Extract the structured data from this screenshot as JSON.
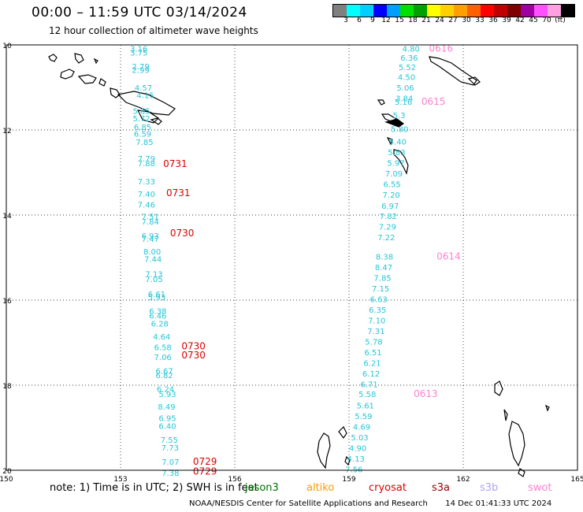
{
  "header": {
    "title": "00:00 – 11:59 UTC 03/14/2024",
    "subtitle": "12 hour collection of altimeter wave heights"
  },
  "colorbar": {
    "colors": [
      "#808080",
      "#00ffff",
      "#00cfff",
      "#0000ff",
      "#00a0ff",
      "#00e000",
      "#00a000",
      "#ffff00",
      "#ffd000",
      "#ffa000",
      "#ff6000",
      "#ff0000",
      "#c00000",
      "#800000",
      "#a000a0",
      "#ff50ff",
      "#ffa0e0",
      "#000000"
    ],
    "labels": [
      "3",
      "6",
      "9",
      "12",
      "15",
      "18",
      "21",
      "24",
      "27",
      "30",
      "33",
      "36",
      "39",
      "42",
      "45",
      "70",
      "(ft)"
    ]
  },
  "map": {
    "x_ticks": [
      "150",
      "153",
      "156",
      "159",
      "162",
      "165"
    ],
    "y_ticks": [
      "10",
      "12",
      "14",
      "16",
      "18",
      "20"
    ],
    "lon_range": [
      150,
      165
    ],
    "lat_range": [
      10,
      20
    ]
  },
  "tracks": {
    "left": {
      "color": "#26c6d6",
      "points": [
        {
          "t": "3.16",
          "lon": 153.25,
          "lat": 10.08,
          "c": "#26c6d6"
        },
        {
          "t": "3.75",
          "lon": 153.25,
          "lat": 10.18,
          "c": "#26c6d6"
        },
        {
          "t": "2.79",
          "lon": 153.3,
          "lat": 10.5,
          "c": "#808080"
        },
        {
          "t": "2.99",
          "lon": 153.3,
          "lat": 10.58,
          "c": "#808080"
        },
        {
          "t": "4.57",
          "lon": 153.37,
          "lat": 11.0,
          "c": "#26c6d6"
        },
        {
          "t": "4.15",
          "lon": 153.42,
          "lat": 11.18,
          "c": "#26c6d6"
        },
        {
          "t": "5.65",
          "lon": 153.32,
          "lat": 11.55,
          "c": "#26c6d6"
        },
        {
          "t": "5.72",
          "lon": 153.32,
          "lat": 11.72,
          "c": "#26c6d6"
        },
        {
          "t": "6.85",
          "lon": 153.35,
          "lat": 11.93,
          "c": "#26c6d6"
        },
        {
          "t": "6.59",
          "lon": 153.35,
          "lat": 12.08,
          "c": "#26c6d6"
        },
        {
          "t": "7.85",
          "lon": 153.4,
          "lat": 12.28,
          "c": "#26c6d6"
        },
        {
          "t": "7.79",
          "lon": 153.45,
          "lat": 12.67,
          "c": "#26c6d6"
        },
        {
          "t": "7.88",
          "lon": 153.45,
          "lat": 12.78,
          "c": "#26c6d6"
        },
        {
          "t": "7.33",
          "lon": 153.45,
          "lat": 13.2,
          "c": "#26c6d6"
        },
        {
          "t": "7.40",
          "lon": 153.45,
          "lat": 13.5,
          "c": "#26c6d6"
        },
        {
          "t": "7.46",
          "lon": 153.45,
          "lat": 13.75,
          "c": "#26c6d6"
        },
        {
          "t": "7.51",
          "lon": 153.55,
          "lat": 14.03,
          "c": "#26c6d6"
        },
        {
          "t": "7.84",
          "lon": 153.55,
          "lat": 14.15,
          "c": "#26c6d6"
        },
        {
          "t": "6.93",
          "lon": 153.55,
          "lat": 14.48,
          "c": "#26c6d6"
        },
        {
          "t": "7.47",
          "lon": 153.55,
          "lat": 14.56,
          "c": "#26c6d6"
        },
        {
          "t": "8.00",
          "lon": 153.6,
          "lat": 14.85,
          "c": "#26c6d6"
        },
        {
          "t": "7.44",
          "lon": 153.62,
          "lat": 15.03,
          "c": "#26c6d6"
        },
        {
          "t": "7.13",
          "lon": 153.65,
          "lat": 15.38,
          "c": "#26c6d6"
        },
        {
          "t": "7.05",
          "lon": 153.65,
          "lat": 15.5,
          "c": "#26c6d6"
        },
        {
          "t": "6.61",
          "lon": 153.72,
          "lat": 15.85,
          "c": "#26c6d6"
        },
        {
          "t": "5.93",
          "lon": 153.72,
          "lat": 15.93,
          "c": "#26c6d6"
        },
        {
          "t": "6.38",
          "lon": 153.75,
          "lat": 16.25,
          "c": "#26c6d6"
        },
        {
          "t": "6.46",
          "lon": 153.75,
          "lat": 16.36,
          "c": "#26c6d6"
        },
        {
          "t": "6.28",
          "lon": 153.8,
          "lat": 16.55,
          "c": "#26c6d6"
        },
        {
          "t": "4.64",
          "lon": 153.85,
          "lat": 16.85,
          "c": "#26c6d6"
        },
        {
          "t": "6.58",
          "lon": 153.88,
          "lat": 17.1,
          "c": "#26c6d6"
        },
        {
          "t": "7.06",
          "lon": 153.88,
          "lat": 17.33,
          "c": "#26c6d6"
        },
        {
          "t": "6.67",
          "lon": 153.92,
          "lat": 17.66,
          "c": "#26c6d6"
        },
        {
          "t": "6.82",
          "lon": 153.92,
          "lat": 17.76,
          "c": "#26c6d6"
        },
        {
          "t": "6.24",
          "lon": 153.95,
          "lat": 18.08,
          "c": "#26c6d6"
        },
        {
          "t": "5.93",
          "lon": 154.0,
          "lat": 18.2,
          "c": "#26c6d6"
        },
        {
          "t": "8.49",
          "lon": 153.98,
          "lat": 18.5,
          "c": "#26c6d6"
        },
        {
          "t": "6.95",
          "lon": 154.0,
          "lat": 18.77,
          "c": "#26c6d6"
        },
        {
          "t": "6.40",
          "lon": 154.0,
          "lat": 18.95,
          "c": "#26c6d6"
        },
        {
          "t": "7.55",
          "lon": 154.05,
          "lat": 19.28,
          "c": "#26c6d6"
        },
        {
          "t": "7.73",
          "lon": 154.07,
          "lat": 19.46,
          "c": "#26c6d6"
        },
        {
          "t": "7.07",
          "lon": 154.08,
          "lat": 19.8,
          "c": "#26c6d6"
        },
        {
          "t": "7.38",
          "lon": 154.08,
          "lat": 20.06,
          "c": "#26c6d6"
        }
      ],
      "times": [
        {
          "t": "0731",
          "lon": 154.12,
          "lat": 12.8,
          "c": "#dd0000"
        },
        {
          "t": "0731",
          "lon": 154.2,
          "lat": 13.48,
          "c": "#dd0000"
        },
        {
          "t": "0730",
          "lon": 154.3,
          "lat": 14.43,
          "c": "#dd0000"
        },
        {
          "t": "0730",
          "lon": 154.6,
          "lat": 17.08,
          "c": "#dd0000"
        },
        {
          "t": "0730",
          "lon": 154.6,
          "lat": 17.3,
          "c": "#dd0000"
        },
        {
          "t": "0729",
          "lon": 154.9,
          "lat": 19.8,
          "c": "#dd0000"
        },
        {
          "t": "0729",
          "lon": 154.9,
          "lat": 20.03,
          "c": "#dd0000"
        }
      ]
    },
    "right": {
      "points": [
        {
          "t": "4.80",
          "lon": 160.4,
          "lat": 10.08,
          "c": "#26c6d6"
        },
        {
          "t": "6.36",
          "lon": 160.35,
          "lat": 10.3,
          "c": "#26c6d6"
        },
        {
          "t": "5.52",
          "lon": 160.3,
          "lat": 10.52,
          "c": "#26c6d6"
        },
        {
          "t": "4.50",
          "lon": 160.28,
          "lat": 10.75,
          "c": "#26c6d6"
        },
        {
          "t": "5.06",
          "lon": 160.25,
          "lat": 11.0,
          "c": "#26c6d6"
        },
        {
          "t": "3.84",
          "lon": 160.22,
          "lat": 11.25,
          "c": "#26c6d6"
        },
        {
          "t": "5.16",
          "lon": 160.2,
          "lat": 11.33,
          "c": "#26c6d6"
        },
        {
          "t": "5.3",
          "lon": 160.15,
          "lat": 11.65,
          "c": "#26c6d6"
        },
        {
          "t": "5.80",
          "lon": 160.1,
          "lat": 11.97,
          "c": "#26c6d6"
        },
        {
          "t": "5.40",
          "lon": 160.05,
          "lat": 12.27,
          "c": "#26c6d6"
        },
        {
          "t": "5.83",
          "lon": 160.02,
          "lat": 12.52,
          "c": "#26c6d6"
        },
        {
          "t": "5.97",
          "lon": 160.0,
          "lat": 12.77,
          "c": "#26c6d6"
        },
        {
          "t": "7.09",
          "lon": 159.95,
          "lat": 13.02,
          "c": "#26c6d6"
        },
        {
          "t": "6.55",
          "lon": 159.9,
          "lat": 13.27,
          "c": "#26c6d6"
        },
        {
          "t": "7.20",
          "lon": 159.88,
          "lat": 13.52,
          "c": "#26c6d6"
        },
        {
          "t": "6.97",
          "lon": 159.85,
          "lat": 13.78,
          "c": "#26c6d6"
        },
        {
          "t": "7.82",
          "lon": 159.8,
          "lat": 14.02,
          "c": "#26c6d6"
        },
        {
          "t": "7.29",
          "lon": 159.78,
          "lat": 14.27,
          "c": "#26c6d6"
        },
        {
          "t": "7.22",
          "lon": 159.75,
          "lat": 14.52,
          "c": "#26c6d6"
        },
        {
          "t": "8.38",
          "lon": 159.7,
          "lat": 14.97,
          "c": "#26c6d6"
        },
        {
          "t": "8.47",
          "lon": 159.68,
          "lat": 15.22,
          "c": "#26c6d6"
        },
        {
          "t": "7.85",
          "lon": 159.65,
          "lat": 15.47,
          "c": "#26c6d6"
        },
        {
          "t": "7.15",
          "lon": 159.6,
          "lat": 15.72,
          "c": "#26c6d6"
        },
        {
          "t": "6.63",
          "lon": 159.55,
          "lat": 15.97,
          "c": "#26c6d6"
        },
        {
          "t": "6.35",
          "lon": 159.52,
          "lat": 16.22,
          "c": "#26c6d6"
        },
        {
          "t": "7.10",
          "lon": 159.5,
          "lat": 16.47,
          "c": "#26c6d6"
        },
        {
          "t": "7.31",
          "lon": 159.48,
          "lat": 16.72,
          "c": "#26c6d6"
        },
        {
          "t": "5.78",
          "lon": 159.42,
          "lat": 16.97,
          "c": "#26c6d6"
        },
        {
          "t": "6.51",
          "lon": 159.4,
          "lat": 17.22,
          "c": "#26c6d6"
        },
        {
          "t": "6.21",
          "lon": 159.38,
          "lat": 17.47,
          "c": "#26c6d6"
        },
        {
          "t": "6.12",
          "lon": 159.35,
          "lat": 17.72,
          "c": "#26c6d6"
        },
        {
          "t": "6.71",
          "lon": 159.3,
          "lat": 17.97,
          "c": "#26c6d6"
        },
        {
          "t": "5.58",
          "lon": 159.25,
          "lat": 18.2,
          "c": "#26c6d6"
        },
        {
          "t": "5.61",
          "lon": 159.2,
          "lat": 18.47,
          "c": "#26c6d6"
        },
        {
          "t": "5.59",
          "lon": 159.15,
          "lat": 18.72,
          "c": "#26c6d6"
        },
        {
          "t": "4.69",
          "lon": 159.1,
          "lat": 18.97,
          "c": "#26c6d6"
        },
        {
          "t": "5.03",
          "lon": 159.05,
          "lat": 19.22,
          "c": "#26c6d6"
        },
        {
          "t": "4.90",
          "lon": 159.0,
          "lat": 19.47,
          "c": "#26c6d6"
        },
        {
          "t": "4.13",
          "lon": 158.95,
          "lat": 19.72,
          "c": "#26c6d6"
        },
        {
          "t": "7.56",
          "lon": 158.9,
          "lat": 19.97,
          "c": "#26c6d6"
        }
      ],
      "times": [
        {
          "t": "0616",
          "lon": 161.1,
          "lat": 10.08,
          "c": "#ff80d0"
        },
        {
          "t": "0615",
          "lon": 160.9,
          "lat": 11.33,
          "c": "#ff80d0"
        },
        {
          "t": "0614",
          "lon": 161.3,
          "lat": 14.97,
          "c": "#ff80d0"
        },
        {
          "t": "0613",
          "lon": 160.7,
          "lat": 18.2,
          "c": "#ff80d0"
        }
      ]
    }
  },
  "legend": {
    "note": "note:  1) Time is in UTC;  2) SWH is in feet",
    "items": [
      {
        "label": "jason3",
        "color": "#007000"
      },
      {
        "label": "altiko",
        "color": "#ff9900"
      },
      {
        "label": "cryosat",
        "color": "#dd0000"
      },
      {
        "label": "s3a",
        "color": "#990000"
      },
      {
        "label": "s3b",
        "color": "#b0a0ff"
      },
      {
        "label": "swot",
        "color": "#ff80d0"
      }
    ]
  },
  "footer": {
    "agency": "NOAA/NESDIS Center for Satellite Applications and Research",
    "timestamp": "14 Dec 01:41:33 UTC 2024"
  }
}
